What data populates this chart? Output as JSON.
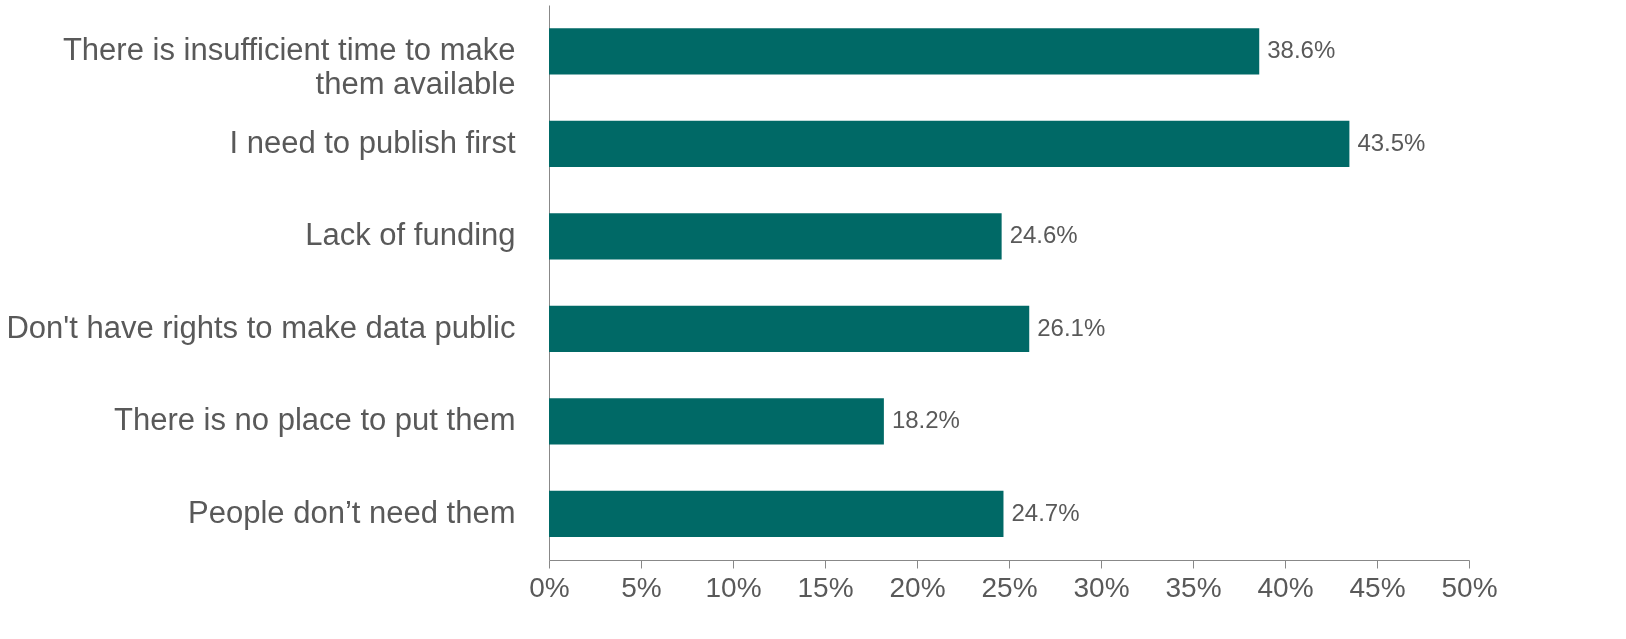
{
  "chart_data": {
    "type": "bar",
    "orientation": "horizontal",
    "categories": [
      "There is insufficient time to make them available",
      "I need to publish first",
      "Lack of funding",
      "Don't have rights to make data public",
      "There is no place to put them",
      "People don’t need them"
    ],
    "values": [
      38.6,
      43.5,
      24.6,
      26.1,
      18.2,
      24.7
    ],
    "value_labels": [
      "38.6%",
      "43.5%",
      "24.6%",
      "26.1%",
      "18.2%",
      "24.7%"
    ],
    "color": "#006966",
    "xlim": [
      0,
      50
    ],
    "xticks": [
      {
        "value": 0,
        "label": "0%"
      },
      {
        "value": 5,
        "label": "5%"
      },
      {
        "value": 10,
        "label": "10%"
      },
      {
        "value": 15,
        "label": "15%"
      },
      {
        "value": 20,
        "label": "20%"
      },
      {
        "value": 25,
        "label": "25%"
      },
      {
        "value": 30,
        "label": "30%"
      },
      {
        "value": 35,
        "label": "35%"
      },
      {
        "value": 40,
        "label": "40%"
      },
      {
        "value": 45,
        "label": "45%"
      },
      {
        "value": 50,
        "label": "50%"
      }
    ],
    "grid": false
  }
}
